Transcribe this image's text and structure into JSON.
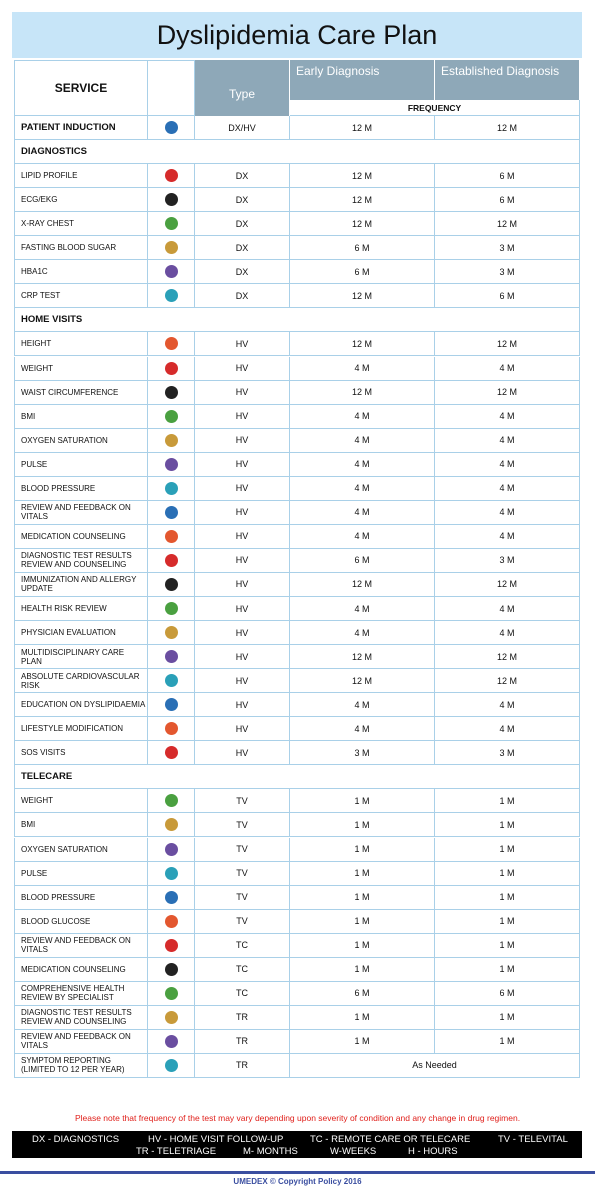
{
  "header": {
    "title": "Dyslipidemia Care Plan"
  },
  "table": {
    "columns": [
      "SERVICE",
      "Type",
      "Early Diagnosis",
      "Established Diagnosis"
    ],
    "frequency_label": "FREQUENCY",
    "rows": [
      [
        "PATIENT INDUCTION",
        "DX/HV",
        "12 M",
        "12 M"
      ],
      [
        "DIAGNOSTICS"
      ],
      [
        "LIPID PROFILE",
        "DX",
        "12 M",
        "6 M"
      ],
      [
        "ECG/EKG",
        "DX",
        "12 M",
        "6 M"
      ],
      [
        "X-RAY CHEST",
        "DX",
        "12 M",
        "12 M"
      ],
      [
        "FASTING BLOOD SUGAR",
        "DX",
        "6 M",
        "3 M"
      ],
      [
        "HBA1C",
        "DX",
        "6 M",
        "3 M"
      ],
      [
        "CRP TEST",
        "DX",
        "12 M",
        "6 M"
      ],
      [
        "HOME VISITS"
      ],
      [
        "HEIGHT",
        "HV",
        "12 M",
        "12 M"
      ],
      [
        "WEIGHT",
        "HV",
        "4 M",
        "4 M"
      ],
      [
        "WAIST CIRCUMFERENCE",
        "HV",
        "12 M",
        "12 M"
      ],
      [
        "BMI",
        "HV",
        "4 M",
        "4 M"
      ],
      [
        "OXYGEN SATURATION",
        "HV",
        "4 M",
        "4 M"
      ],
      [
        "PULSE",
        "HV",
        "4 M",
        "4 M"
      ],
      [
        "BLOOD PRESSURE",
        "HV",
        "4 M",
        "4 M"
      ],
      [
        "REVIEW AND FEEDBACK ON VITALS",
        "HV",
        "4 M",
        "4 M"
      ],
      [
        "MEDICATION COUNSELING",
        "HV",
        "4 M",
        "4 M"
      ],
      [
        "DIAGNOSTIC TEST RESULTS REVIEW AND COUNSELING",
        "HV",
        "6 M",
        "3 M"
      ],
      [
        "IMMUNIZATION AND ALLERGY UPDATE",
        "HV",
        "12 M",
        "12 M"
      ],
      [
        "HEALTH RISK REVIEW",
        "HV",
        "4 M",
        "4 M"
      ],
      [
        "PHYSICIAN EVALUATION",
        "HV",
        "4 M",
        "4 M"
      ],
      [
        "MULTIDISCIPLINARY CARE PLAN",
        "HV",
        "12 M",
        "12 M"
      ],
      [
        "ABSOLUTE CARDIOVASCULAR RISK",
        "HV",
        "12 M",
        "12 M"
      ],
      [
        "EDUCATION ON DYSLIPIDAEMIA",
        "HV",
        "4 M",
        "4 M"
      ],
      [
        "LIFESTYLE MODIFICATION",
        "HV",
        "4 M",
        "4 M"
      ],
      [
        "SOS VISITS",
        "HV",
        "3 M",
        "3 M"
      ],
      [
        "TELECARE"
      ],
      [
        "WEIGHT",
        "TV",
        "1 M",
        "1 M"
      ],
      [
        "BMI",
        "TV",
        "1 M",
        "1 M"
      ],
      [
        "OXYGEN SATURATION",
        "TV",
        "1 M",
        "1 M"
      ],
      [
        "PULSE",
        "TV",
        "1 M",
        "1 M"
      ],
      [
        "BLOOD PRESSURE",
        "TV",
        "1 M",
        "1 M"
      ],
      [
        "BLOOD GLUCOSE",
        "TV",
        "1 M",
        "1 M"
      ],
      [
        "REVIEW AND FEEDBACK ON VITALS",
        "TC",
        "1 M",
        "1 M"
      ],
      [
        "MEDICATION COUNSELING",
        "TC",
        "1 M",
        "1 M"
      ],
      [
        "COMPREHENSIVE HEALTH REVIEW BY SPECIALIST",
        "TC",
        "6 M",
        "6 M"
      ],
      [
        "DIAGNOSTIC TEST RESULTS REVIEW AND COUNSELING",
        "TR",
        "1 M",
        "1 M"
      ],
      [
        "REVIEW AND FEEDBACK ON VITALS",
        "TR",
        "1 M",
        "1 M"
      ],
      [
        "SYMPTOM REPORTING (LIMITED TO 12 PER YEAR)",
        "TR",
        "As Needed"
      ]
    ]
  },
  "note": "Please note that frequency of the test  may vary depending upon severity of condition  and any change in drug regimen.",
  "legend": [
    "DX - DIAGNOSTICS",
    "HV - HOME VISIT FOLLOW-UP",
    "TC - REMOTE CARE OR TELECARE",
    "TV - TELEVITAL",
    "TR - TELETRIAGE",
    "M- MONTHS",
    "W-WEEKS",
    "H - HOURS"
  ],
  "footer": "UMEDEX © Copyright Policy 2016"
}
